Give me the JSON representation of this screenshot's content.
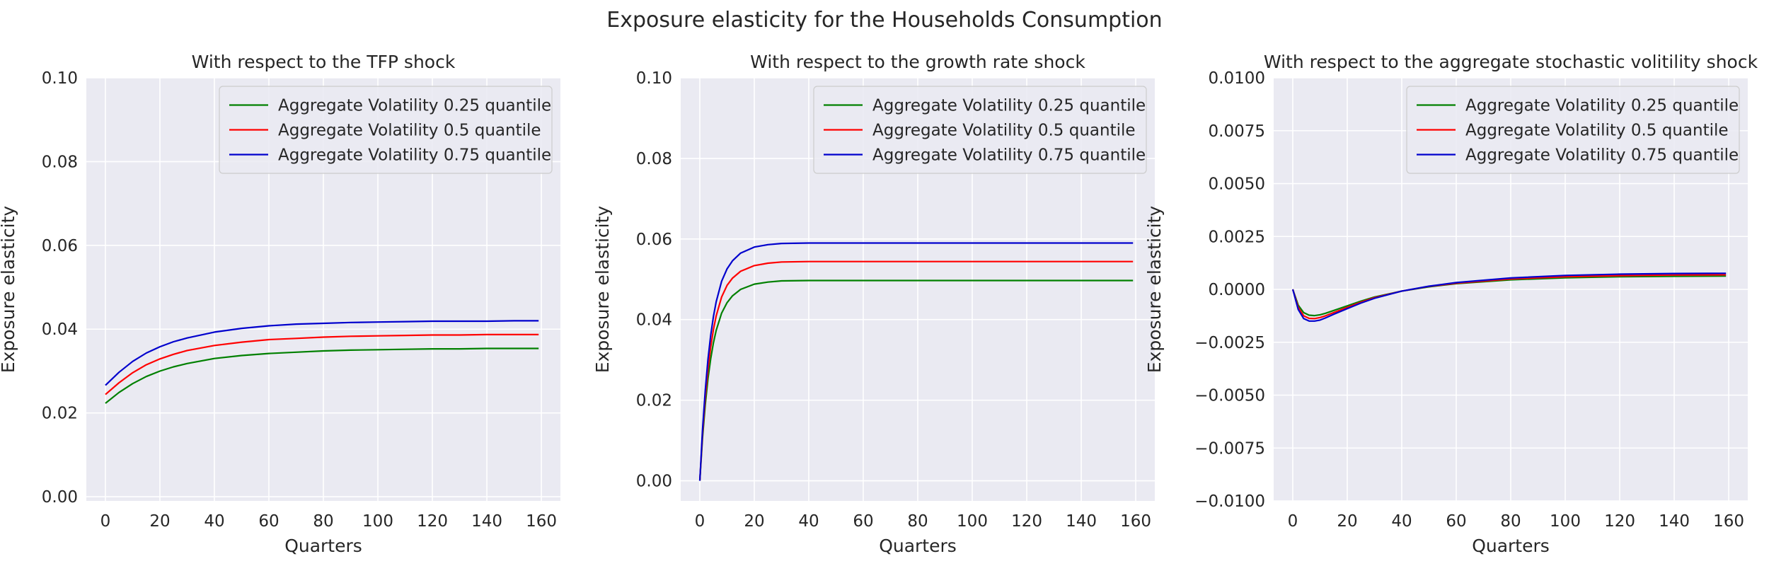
{
  "figure": {
    "suptitle": "Exposure elasticity for the Households Consumption",
    "colors": {
      "panel_background": "#EAEAF2",
      "grid": "#FFFFFF",
      "text": "#262626",
      "series": [
        "#008000",
        "#FF0000",
        "#0000CD"
      ]
    }
  },
  "chart_data": [
    {
      "type": "line",
      "title": "With respect to the TFP shock",
      "xlabel": "Quarters",
      "ylabel": "Exposure elasticity",
      "xlim": [
        -7,
        167
      ],
      "ylim": [
        -0.001,
        0.1
      ],
      "xticks": [
        0,
        20,
        40,
        60,
        80,
        100,
        120,
        140,
        160
      ],
      "xtick_labels": [
        "0",
        "20",
        "40",
        "60",
        "80",
        "100",
        "120",
        "140",
        "160"
      ],
      "yticks": [
        0.0,
        0.02,
        0.04,
        0.06,
        0.08,
        0.1
      ],
      "ytick_labels": [
        "0.00",
        "0.02",
        "0.04",
        "0.06",
        "0.08",
        "0.10"
      ],
      "grid": true,
      "legend_position": "top-right",
      "x": [
        0,
        5,
        10,
        15,
        20,
        25,
        30,
        40,
        50,
        60,
        70,
        80,
        90,
        100,
        110,
        120,
        130,
        140,
        150,
        159
      ],
      "series": [
        {
          "name": "Aggregate Volatility 0.25 quantile",
          "color": "#008000",
          "values": [
            0.0223,
            0.0249,
            0.027,
            0.0287,
            0.03,
            0.031,
            0.0318,
            0.033,
            0.0337,
            0.0342,
            0.0345,
            0.0348,
            0.035,
            0.0351,
            0.0352,
            0.0353,
            0.0353,
            0.0354,
            0.0354,
            0.0354
          ]
        },
        {
          "name": "Aggregate Volatility 0.5 quantile",
          "color": "#FF0000",
          "values": [
            0.0244,
            0.0272,
            0.0296,
            0.0315,
            0.0329,
            0.034,
            0.0349,
            0.0361,
            0.0369,
            0.0375,
            0.0378,
            0.0381,
            0.0383,
            0.0384,
            0.0385,
            0.0386,
            0.0386,
            0.0387,
            0.0387,
            0.0387
          ]
        },
        {
          "name": "Aggregate Volatility 0.75 quantile",
          "color": "#0000CD",
          "values": [
            0.0266,
            0.0297,
            0.0323,
            0.0343,
            0.0358,
            0.037,
            0.0379,
            0.0393,
            0.0402,
            0.0408,
            0.0412,
            0.0414,
            0.0416,
            0.0417,
            0.0418,
            0.0419,
            0.0419,
            0.0419,
            0.042,
            0.042
          ]
        }
      ]
    },
    {
      "type": "line",
      "title": "With respect to the growth rate shock",
      "xlabel": "Quarters",
      "ylabel": "Exposure elasticity",
      "xlim": [
        -7,
        167
      ],
      "ylim": [
        -0.005,
        0.1
      ],
      "xticks": [
        0,
        20,
        40,
        60,
        80,
        100,
        120,
        140,
        160
      ],
      "xtick_labels": [
        "0",
        "20",
        "40",
        "60",
        "80",
        "100",
        "120",
        "140",
        "160"
      ],
      "yticks": [
        0.0,
        0.02,
        0.04,
        0.06,
        0.08,
        0.1
      ],
      "ytick_labels": [
        "0.00",
        "0.02",
        "0.04",
        "0.06",
        "0.08",
        "0.10"
      ],
      "grid": true,
      "legend_position": "top-right",
      "x": [
        0,
        1,
        2,
        3,
        4,
        5,
        6,
        8,
        10,
        12,
        15,
        20,
        25,
        30,
        40,
        60,
        80,
        100,
        120,
        140,
        159
      ],
      "series": [
        {
          "name": "Aggregate Volatility 0.25 quantile",
          "color": "#008000",
          "values": [
            0.0,
            0.0106,
            0.0189,
            0.0253,
            0.0303,
            0.0342,
            0.0373,
            0.0416,
            0.0442,
            0.0459,
            0.0475,
            0.0488,
            0.0493,
            0.0496,
            0.0497,
            0.0497,
            0.0497,
            0.0497,
            0.0497,
            0.0497,
            0.0497
          ]
        },
        {
          "name": "Aggregate Volatility 0.5 quantile",
          "color": "#FF0000",
          "values": [
            0.0,
            0.0116,
            0.0207,
            0.0277,
            0.0332,
            0.0375,
            0.0409,
            0.0456,
            0.0485,
            0.0503,
            0.052,
            0.0534,
            0.054,
            0.0543,
            0.0544,
            0.0544,
            0.0544,
            0.0544,
            0.0544,
            0.0544,
            0.0544
          ]
        },
        {
          "name": "Aggregate Volatility 0.75 quantile",
          "color": "#0000CD",
          "values": [
            0.0,
            0.0126,
            0.0224,
            0.0301,
            0.0361,
            0.0407,
            0.0444,
            0.0495,
            0.0526,
            0.0546,
            0.0565,
            0.058,
            0.0586,
            0.0589,
            0.059,
            0.059,
            0.059,
            0.059,
            0.059,
            0.059,
            0.059
          ]
        }
      ]
    },
    {
      "type": "line",
      "title": "With respect to the aggregate stochastic volitility shock",
      "xlabel": "Quarters",
      "ylabel": "Exposure elasticity",
      "xlim": [
        -7,
        167
      ],
      "ylim": [
        -0.01,
        0.01
      ],
      "xticks": [
        0,
        20,
        40,
        60,
        80,
        100,
        120,
        140,
        160
      ],
      "xtick_labels": [
        "0",
        "20",
        "40",
        "60",
        "80",
        "100",
        "120",
        "140",
        "160"
      ],
      "yticks": [
        -0.01,
        -0.0075,
        -0.005,
        -0.0025,
        0.0,
        0.0025,
        0.005,
        0.0075,
        0.01
      ],
      "ytick_labels": [
        "−0.0100",
        "−0.0075",
        "−0.0050",
        "−0.0025",
        "0.0000",
        "0.0025",
        "0.0050",
        "0.0075",
        "0.0100"
      ],
      "grid": true,
      "legend_position": "top-right",
      "x": [
        0,
        2,
        4,
        6,
        8,
        10,
        12,
        15,
        20,
        25,
        30,
        40,
        50,
        60,
        80,
        100,
        120,
        140,
        159
      ],
      "series": [
        {
          "name": "Aggregate Volatility 0.25 quantile",
          "color": "#008000",
          "values": [
            0.0,
            -0.00075,
            -0.0011,
            -0.00122,
            -0.00124,
            -0.0012,
            -0.00113,
            -0.001,
            -0.00078,
            -0.00056,
            -0.00036,
            -8e-05,
            0.00012,
            0.00027,
            0.00045,
            0.00055,
            0.0006,
            0.00062,
            0.00063
          ]
        },
        {
          "name": "Aggregate Volatility 0.5 quantile",
          "color": "#FF0000",
          "values": [
            0.0,
            -0.00085,
            -0.00125,
            -0.00137,
            -0.00138,
            -0.00133,
            -0.00125,
            -0.0011,
            -0.00085,
            -0.00061,
            -0.00039,
            -8e-05,
            0.00014,
            0.00029,
            0.00049,
            0.0006,
            0.00065,
            0.00068,
            0.00069
          ]
        },
        {
          "name": "Aggregate Volatility 0.75 quantile",
          "color": "#0000CD",
          "values": [
            0.0,
            -0.00095,
            -0.00138,
            -0.0015,
            -0.0015,
            -0.00145,
            -0.00135,
            -0.00118,
            -0.00091,
            -0.00065,
            -0.00042,
            -8e-05,
            0.00015,
            0.00032,
            0.00054,
            0.00066,
            0.00072,
            0.00075,
            0.00076
          ]
        }
      ]
    }
  ]
}
